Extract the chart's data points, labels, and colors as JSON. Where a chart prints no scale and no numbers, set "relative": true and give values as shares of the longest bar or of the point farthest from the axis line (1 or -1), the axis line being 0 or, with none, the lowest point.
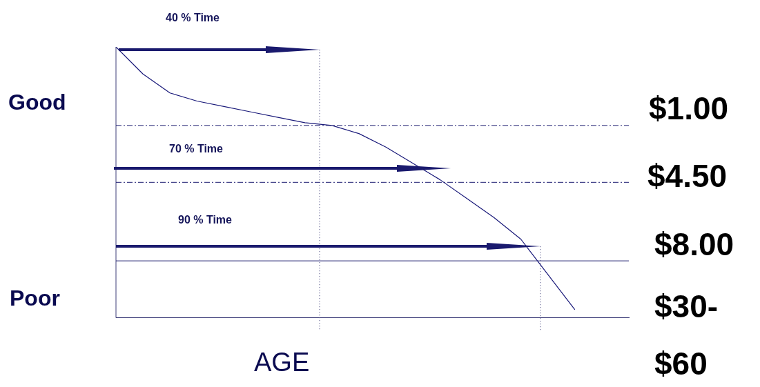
{
  "chart_data": {
    "type": "line",
    "relative": true,
    "xlabel": "AGE",
    "categories": [
      null,
      null,
      null,
      null,
      null,
      null,
      null,
      null,
      null,
      null,
      null,
      null,
      null,
      null,
      null,
      null,
      null,
      null,
      null,
      null
    ],
    "series": [
      {
        "color": "#1a1a7a",
        "values": [
          1.0,
          0.9,
          0.83,
          0.8,
          0.78,
          0.76,
          0.74,
          0.72,
          0.71,
          0.68,
          0.63,
          0.57,
          0.51,
          0.44,
          0.37,
          0.29,
          0.16,
          0.03,
          null,
          null
        ]
      }
    ],
    "ref_lines": [
      {
        "axis": "y",
        "value": 0.71,
        "color": "#1a1a6e",
        "line_style": "dashed"
      },
      {
        "axis": "y",
        "value": 0.5,
        "color": "#1a1a6e",
        "line_style": "dashed"
      },
      {
        "axis": "y",
        "value": 0.21,
        "color": "#1a1a6e",
        "line_style": "solid"
      }
    ],
    "annotations": [
      "40 % Time",
      "70 % Time",
      "90 % Time",
      "Good",
      "Poor",
      "$1.00",
      "$4.50",
      "$8.00",
      "$30-\n$60"
    ],
    "grid": false,
    "legend": false,
    "marker": "none"
  }
}
